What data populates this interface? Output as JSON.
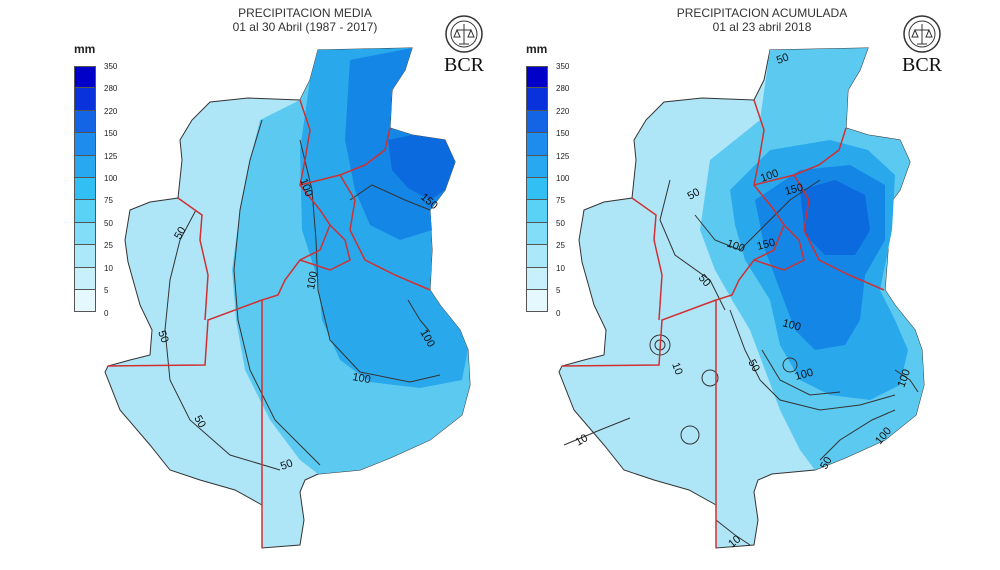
{
  "panels": {
    "left": {
      "title_line1": "PRECIPITACION MEDIA",
      "title_line2": "01 al 30 Abril (1987 - 2017)",
      "contour_labels": [
        "50",
        "50",
        "50",
        "50",
        "100",
        "100",
        "100",
        "100",
        "150"
      ]
    },
    "right": {
      "title_line1": "PRECIPITACION ACUMULADA",
      "title_line2": "01 al 23 abril 2018",
      "contour_labels": [
        "50",
        "50",
        "50",
        "50",
        "100",
        "100",
        "100",
        "100",
        "100",
        "150",
        "150",
        "10",
        "10",
        "10"
      ]
    }
  },
  "legend": {
    "unit": "mm",
    "ticks": [
      "350",
      "280",
      "220",
      "150",
      "125",
      "100",
      "75",
      "50",
      "25",
      "10",
      "5",
      "0"
    ],
    "colors": [
      "#0000c8",
      "#0a32dc",
      "#1464e6",
      "#1e8cec",
      "#28a8f0",
      "#32c0f4",
      "#5ad2f6",
      "#82ddf8",
      "#aae8fa",
      "#c8f0fc",
      "#e4f8fe",
      "#ffffff"
    ]
  },
  "logo": {
    "text": "BCR"
  },
  "map_fill": {
    "light": "#aee6f8",
    "medium": "#5ccaf0",
    "deep": "#2aa8ec",
    "dark": "#1486e6",
    "darker": "#0a6ade",
    "boundary": "#d03030",
    "contour": "#333333"
  }
}
